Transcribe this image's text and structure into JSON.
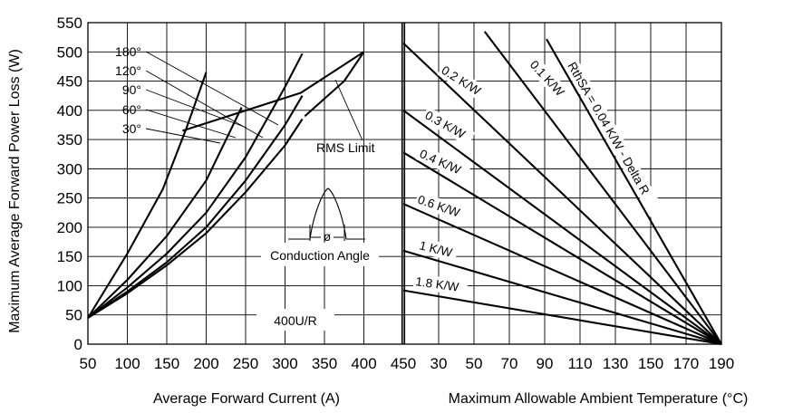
{
  "chart_data": [
    {
      "type": "line",
      "xlabel": "Average Forward Current (A)",
      "ylabel": "Maximum Average Forward Power Loss (W)",
      "xlim": [
        50,
        450
      ],
      "ylim": [
        0,
        550
      ],
      "x_ticks": [
        "50",
        "100",
        "150",
        "200",
        "250",
        "300",
        "350",
        "400",
        "450"
      ],
      "y_ticks": [
        "0",
        "50",
        "100",
        "150",
        "200",
        "250",
        "300",
        "350",
        "400",
        "450",
        "500",
        "550"
      ],
      "series": [
        {
          "name": "30°",
          "x": [
            50,
            100,
            150,
            200,
            250,
            300,
            322
          ],
          "y": [
            45,
            87,
            135,
            190,
            260,
            340,
            385
          ]
        },
        {
          "name": "60°",
          "x": [
            50,
            100,
            150,
            200,
            250,
            300,
            322
          ],
          "y": [
            45,
            90,
            140,
            200,
            280,
            375,
            425
          ]
        },
        {
          "name": "90°",
          "x": [
            50,
            100,
            150,
            200,
            250,
            300,
            322
          ],
          "y": [
            45,
            97,
            155,
            225,
            320,
            440,
            497
          ]
        },
        {
          "name": "120°",
          "x": [
            50,
            100,
            150,
            200,
            245
          ],
          "y": [
            45,
            110,
            185,
            280,
            405
          ]
        },
        {
          "name": "180°",
          "x": [
            50,
            100,
            145,
            175,
            200
          ],
          "y": [
            45,
            155,
            265,
            370,
            465
          ]
        },
        {
          "name": "RMS Limit",
          "x": [
            170,
            320,
            400,
            325,
            375,
            400
          ],
          "y": [
            365,
            430,
            500,
            390,
            450,
            500
          ]
        }
      ],
      "annotations": [
        "180°",
        "120°",
        "90°",
        "60°",
        "30°",
        "RMS Limit",
        "Conduction Angle",
        "ø",
        "400U/R"
      ]
    },
    {
      "type": "line",
      "xlabel": "Maximum Allowable Ambient Temperature (°C)",
      "xlim": [
        10,
        190
      ],
      "x_ticks": [
        "30",
        "50",
        "70",
        "90",
        "110",
        "130",
        "150",
        "170",
        "190"
      ],
      "series": [
        {
          "name": "0.1 K/W",
          "x": [
            56,
            190
          ],
          "y": [
            535,
            0
          ]
        },
        {
          "name": "RthSA = 0.04 K/W - Delta R",
          "x": [
            91,
            190
          ],
          "y": [
            522,
            0
          ]
        },
        {
          "name": "0.2 K/W",
          "x": [
            10,
            190
          ],
          "y": [
            515,
            0
          ]
        },
        {
          "name": "0.3 K/W",
          "x": [
            10,
            190
          ],
          "y": [
            400,
            0
          ]
        },
        {
          "name": "0.4 K/W",
          "x": [
            10,
            190
          ],
          "y": [
            328,
            0
          ]
        },
        {
          "name": "0.6 K/W",
          "x": [
            10,
            190
          ],
          "y": [
            240,
            0
          ]
        },
        {
          "name": "1 K/W",
          "x": [
            10,
            190
          ],
          "y": [
            160,
            0
          ]
        },
        {
          "name": "1.8 K/W",
          "x": [
            10,
            190
          ],
          "y": [
            92,
            0
          ]
        }
      ]
    }
  ]
}
